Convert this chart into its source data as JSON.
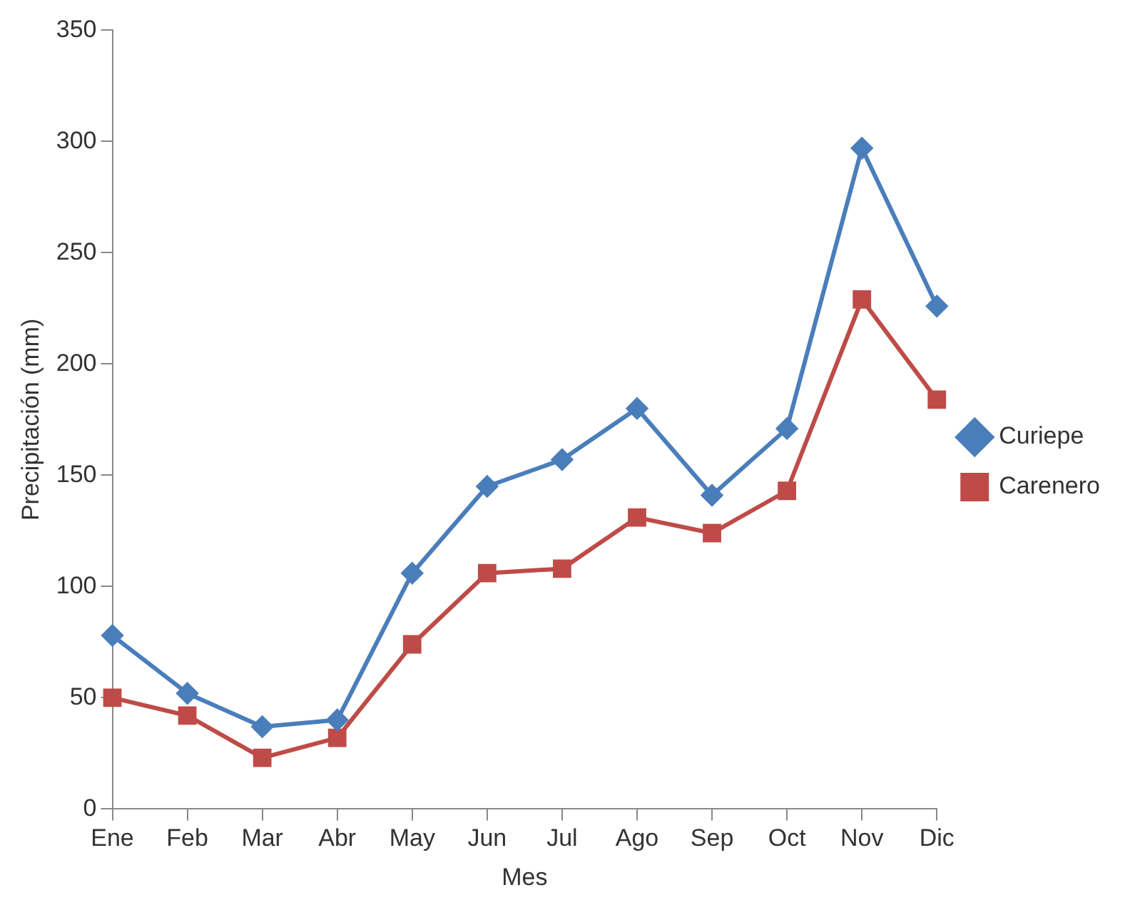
{
  "chart_data": {
    "type": "line",
    "xlabel": "Mes",
    "ylabel": "Precipitación (mm)",
    "categories": [
      "Ene",
      "Feb",
      "Mar",
      "Abr",
      "May",
      "Jun",
      "Jul",
      "Ago",
      "Sep",
      "Oct",
      "Nov",
      "Dic"
    ],
    "series": [
      {
        "name": "Curiepe",
        "color": "#4a7ebb",
        "marker": "diamond",
        "values": [
          78,
          52,
          37,
          40,
          106,
          145,
          157,
          180,
          141,
          171,
          297,
          226
        ]
      },
      {
        "name": "Carenero",
        "color": "#be4b48",
        "marker": "square",
        "values": [
          50,
          42,
          23,
          32,
          74,
          106,
          108,
          131,
          124,
          143,
          229,
          184
        ]
      }
    ],
    "ylim": [
      0,
      350
    ],
    "yticks": [
      0,
      50,
      100,
      150,
      200,
      250,
      300,
      350
    ],
    "grid": false,
    "legend": "right",
    "line_style": "solid"
  }
}
